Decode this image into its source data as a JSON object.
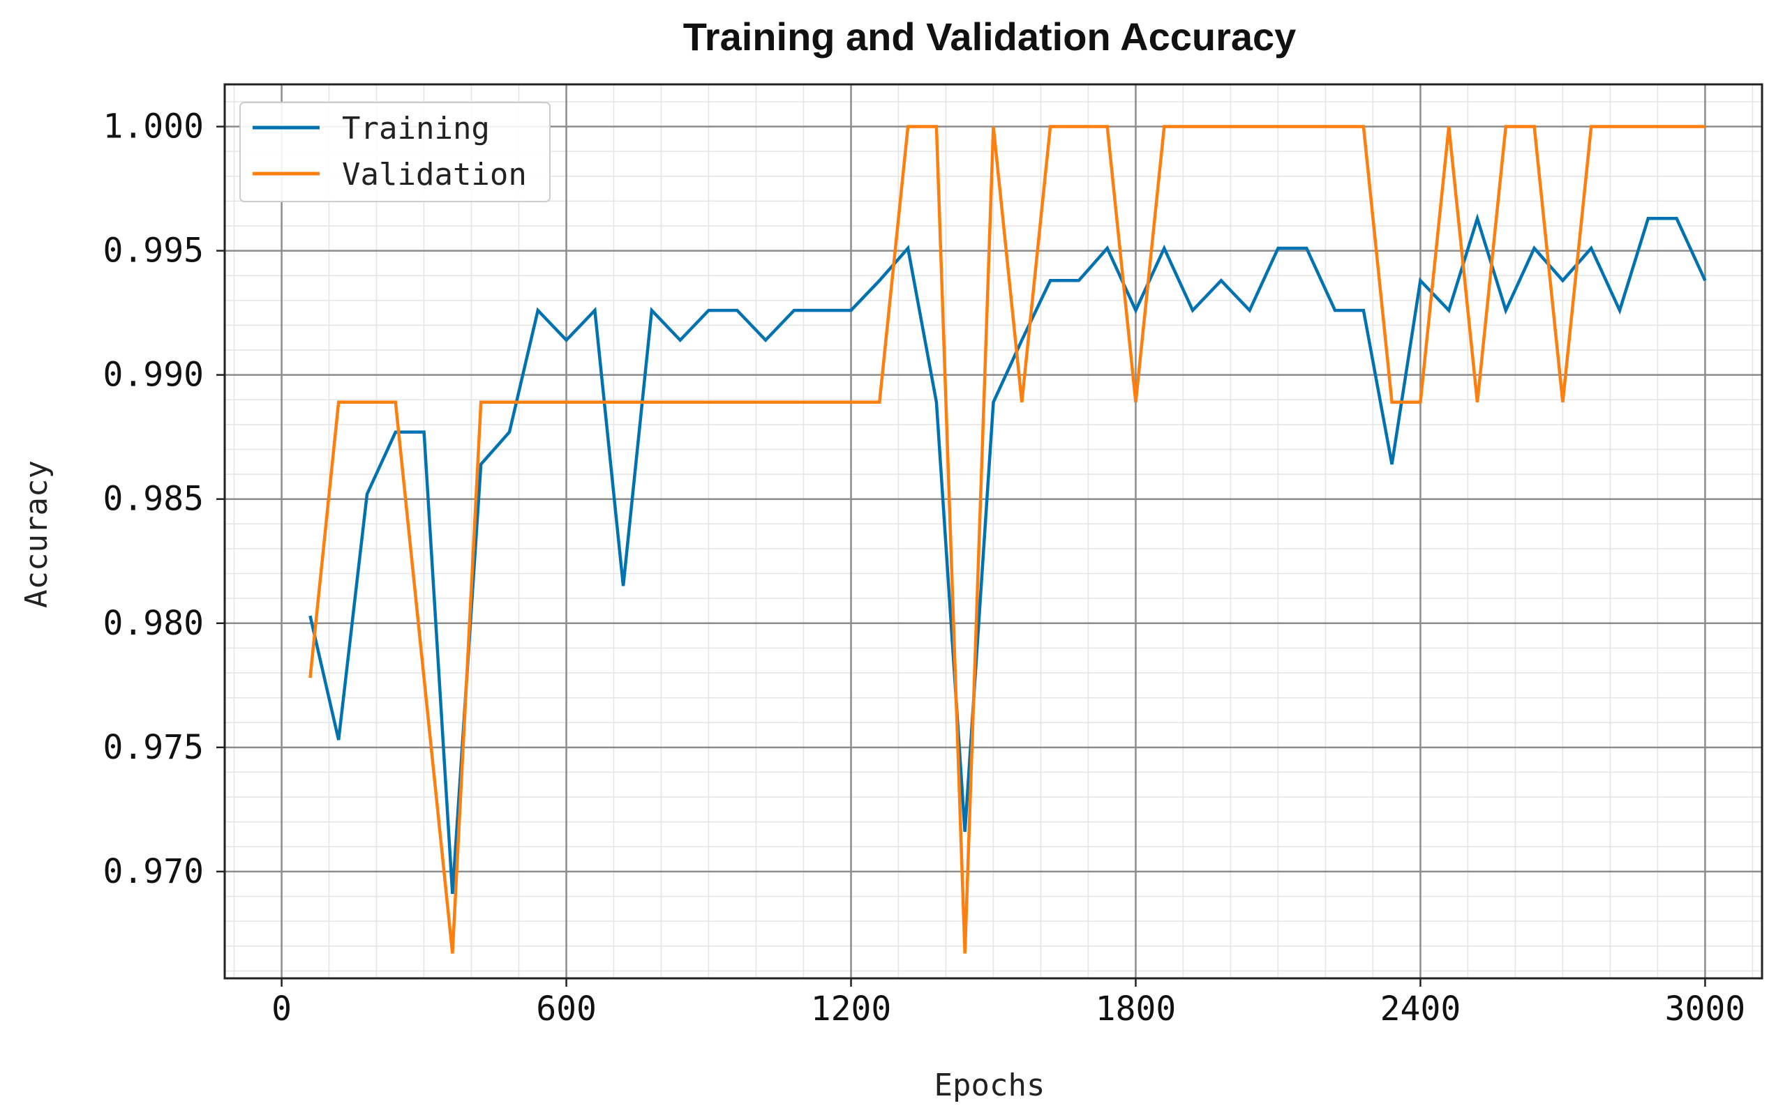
{
  "chart_data": {
    "type": "line",
    "title": "Training and Validation Accuracy",
    "xlabel": "Epochs",
    "ylabel": "Accuracy",
    "xlim": [
      -120,
      3120
    ],
    "ylim": [
      0.9657,
      1.0017
    ],
    "xticks": [
      0,
      600,
      1200,
      1800,
      2400,
      3000
    ],
    "yticks": [
      0.97,
      0.975,
      0.98,
      0.985,
      0.99,
      0.995,
      1.0
    ],
    "ytick_labels": [
      "0.970",
      "0.975",
      "0.980",
      "0.985",
      "0.990",
      "0.995",
      "1.000"
    ],
    "grid": true,
    "minor_grid": true,
    "legend_position": "top-left",
    "x": [
      60,
      120,
      180,
      240,
      300,
      360,
      420,
      480,
      540,
      600,
      660,
      720,
      780,
      840,
      900,
      960,
      1020,
      1080,
      1140,
      1200,
      1260,
      1320,
      1380,
      1440,
      1500,
      1560,
      1620,
      1680,
      1740,
      1800,
      1860,
      1920,
      1980,
      2040,
      2100,
      2160,
      2220,
      2280,
      2340,
      2400,
      2460,
      2520,
      2580,
      2640,
      2700,
      2760,
      2820,
      2880,
      2940,
      3000
    ],
    "series": [
      {
        "name": "Training",
        "color": "#0072b2",
        "values": [
          0.9803,
          0.9753,
          0.9852,
          0.9877,
          0.9877,
          0.9691,
          0.9864,
          0.9877,
          0.9926,
          0.9914,
          0.9926,
          0.9815,
          0.9926,
          0.9914,
          0.9926,
          0.9926,
          0.9914,
          0.9926,
          0.9926,
          0.9926,
          0.9938,
          0.9951,
          0.9889,
          0.9716,
          0.9889,
          0.9914,
          0.9938,
          0.9938,
          0.9951,
          0.9926,
          0.9951,
          0.9926,
          0.9938,
          0.9926,
          0.9951,
          0.9951,
          0.9926,
          0.9926,
          0.9864,
          0.9938,
          0.9926,
          0.9963,
          0.9926,
          0.9951,
          0.9938,
          0.9951,
          0.9926,
          0.9963,
          0.9963,
          0.9938
        ]
      },
      {
        "name": "Validation",
        "color": "#ff7f0e",
        "values": [
          0.9778,
          0.9889,
          0.9889,
          0.9889,
          0.9778,
          0.9667,
          0.9889,
          0.9889,
          0.9889,
          0.9889,
          0.9889,
          0.9889,
          0.9889,
          0.9889,
          0.9889,
          0.9889,
          0.9889,
          0.9889,
          0.9889,
          0.9889,
          0.9889,
          1.0,
          1.0,
          0.9667,
          1.0,
          0.9889,
          1.0,
          1.0,
          1.0,
          0.9889,
          1.0,
          1.0,
          1.0,
          1.0,
          1.0,
          1.0,
          1.0,
          1.0,
          0.9889,
          0.9889,
          1.0,
          0.9889,
          1.0,
          1.0,
          0.9889,
          1.0,
          1.0,
          1.0,
          1.0,
          1.0
        ]
      }
    ]
  }
}
